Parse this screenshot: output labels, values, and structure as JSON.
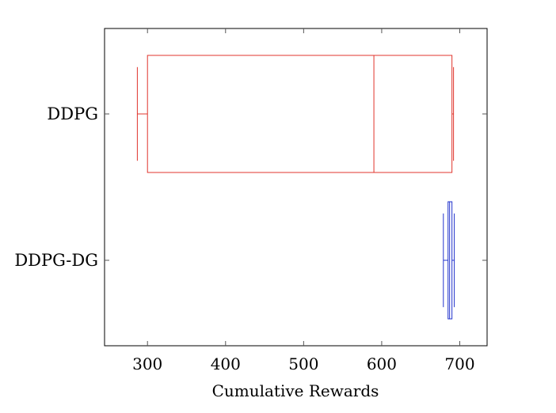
{
  "chart_data": {
    "type": "boxplot",
    "orientation": "horizontal",
    "title": "",
    "xlabel": "Cumulative Rewards",
    "ylabel": "",
    "xlim": [
      245,
      735
    ],
    "xticks": [
      300,
      400,
      500,
      600,
      700
    ],
    "grid": false,
    "categories": [
      "DDPG",
      "DDPG-DG"
    ],
    "series": [
      {
        "category": "DDPG",
        "color": "#e0342c",
        "whisker_low": 287,
        "q1": 300,
        "median": 590,
        "q3": 690,
        "whisker_high": 692
      },
      {
        "category": "DDPG-DG",
        "color": "#2233cc",
        "whisker_low": 679,
        "q1": 685,
        "median": 687,
        "q3": 690,
        "whisker_high": 693
      }
    ]
  }
}
